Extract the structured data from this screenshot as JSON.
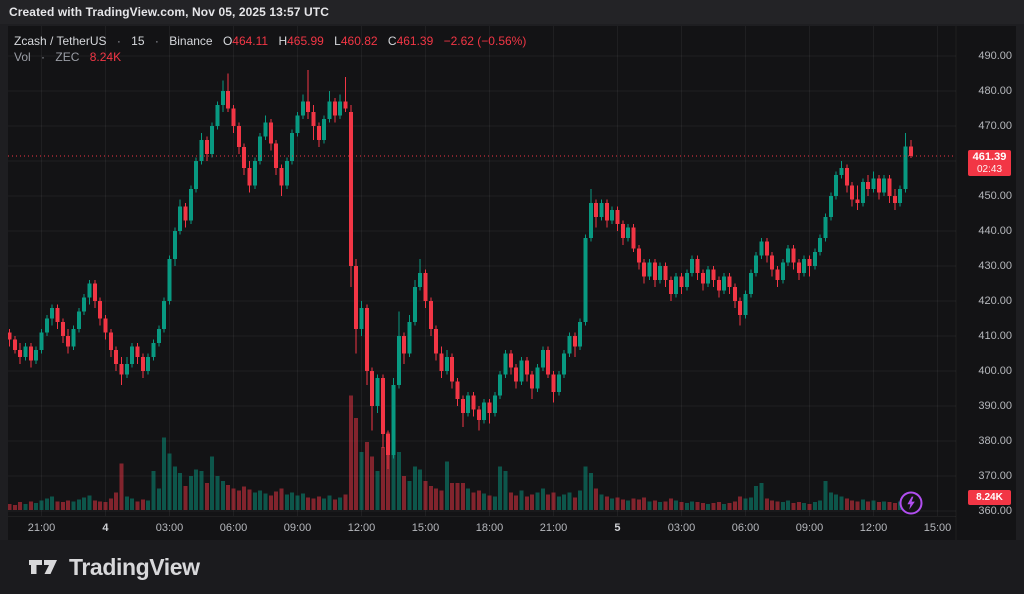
{
  "attribution": "Created with TradingView.com, Nov 05, 2025 13:57 UTC",
  "legend": {
    "title": {
      "symbol": "Zcash / TetherUS",
      "separator": "·",
      "interval": "15",
      "exchange": "Binance"
    },
    "ohlc": {
      "o_label": "O",
      "o_value": "464.11",
      "h_label": "H",
      "h_value": "465.99",
      "l_label": "L",
      "l_value": "460.82",
      "c_label": "C",
      "c_value": "461.39",
      "change": "−2.62 (−0.56%)"
    },
    "volume_row": {
      "label": "Vol",
      "separator": "·",
      "symbol": "ZEC",
      "value": "8.24K"
    }
  },
  "price_axis": {
    "labels": [
      "490.00",
      "480.00",
      "470.00",
      "450.00",
      "440.00",
      "430.00",
      "420.00",
      "410.00",
      "400.00",
      "390.00",
      "380.00",
      "370.00",
      "360.00"
    ],
    "badge": {
      "price": "461.39",
      "countdown": "02:43"
    },
    "volume_badge": "8.24K"
  },
  "time_axis": {
    "ticks": [
      {
        "label": "21:00",
        "index": 6
      },
      {
        "label": "4",
        "index": 18,
        "bold": true
      },
      {
        "label": "03:00",
        "index": 30
      },
      {
        "label": "06:00",
        "index": 42
      },
      {
        "label": "09:00",
        "index": 54
      },
      {
        "label": "12:00",
        "index": 66
      },
      {
        "label": "15:00",
        "index": 78
      },
      {
        "label": "18:00",
        "index": 90
      },
      {
        "label": "21:00",
        "index": 102
      },
      {
        "label": "5",
        "index": 114,
        "bold": true
      },
      {
        "label": "03:00",
        "index": 126
      },
      {
        "label": "06:00",
        "index": 138
      },
      {
        "label": "09:00",
        "index": 150
      },
      {
        "label": "12:00",
        "index": 162
      },
      {
        "label": "15:00",
        "index": 174
      }
    ]
  },
  "footer": {
    "brand": "TradingView"
  },
  "colors": {
    "up": "#089981",
    "down": "#F23645",
    "accent": "#F23645",
    "grid": "rgba(255,255,255,0.055)",
    "axis_text": "#B6B8BD",
    "purple": "#B14EF0",
    "background": "#131315"
  },
  "chart_data": {
    "type": "candlestick_with_volume",
    "title": "Zcash / TetherUS · 15 · Binance",
    "symbol": "ZEC/USDT",
    "interval_minutes": 15,
    "start_time": "2025-11-03 19:30 UTC",
    "end_time": "2025-11-05 13:45 UTC",
    "last_price": 461.39,
    "countdown": "02:43",
    "last_volume_k": 8.24,
    "ylim": [
      360,
      490
    ],
    "y_tick_step": 10,
    "grid": true,
    "volume_unit": "thousand ZEC",
    "candles_format": [
      "open",
      "high",
      "low",
      "close",
      "volume_k"
    ],
    "candles": [
      [
        411,
        412,
        407,
        409,
        6
      ],
      [
        409,
        410,
        405,
        406,
        5
      ],
      [
        406,
        408,
        402,
        404,
        8
      ],
      [
        404,
        408,
        403,
        407,
        6
      ],
      [
        407,
        408,
        401,
        403,
        9
      ],
      [
        403,
        407,
        402,
        406,
        7
      ],
      [
        406,
        412,
        405,
        411,
        10
      ],
      [
        411,
        416,
        410,
        415,
        12
      ],
      [
        415,
        419,
        413,
        418,
        14
      ],
      [
        418,
        419,
        412,
        414,
        9
      ],
      [
        414,
        415,
        408,
        410,
        8
      ],
      [
        410,
        412,
        405,
        407,
        10
      ],
      [
        407,
        413,
        406,
        412,
        9
      ],
      [
        412,
        418,
        411,
        417,
        11
      ],
      [
        417,
        422,
        416,
        421,
        13
      ],
      [
        421,
        426,
        419,
        425,
        15
      ],
      [
        425,
        426,
        418,
        420,
        10
      ],
      [
        420,
        421,
        413,
        415,
        9
      ],
      [
        415,
        416,
        409,
        411,
        8
      ],
      [
        411,
        412,
        404,
        406,
        12
      ],
      [
        406,
        407,
        400,
        402,
        18
      ],
      [
        402,
        404,
        396,
        399,
        48
      ],
      [
        399,
        404,
        398,
        402,
        14
      ],
      [
        402,
        408,
        401,
        407,
        12
      ],
      [
        407,
        408,
        402,
        404,
        9
      ],
      [
        404,
        405,
        398,
        400,
        11
      ],
      [
        400,
        405,
        399,
        404,
        10
      ],
      [
        404,
        409,
        403,
        408,
        40
      ],
      [
        408,
        413,
        407,
        412,
        22
      ],
      [
        412,
        421,
        411,
        420,
        75
      ],
      [
        420,
        433,
        419,
        432,
        58
      ],
      [
        432,
        441,
        430,
        440,
        45
      ],
      [
        440,
        449,
        439,
        447,
        38
      ],
      [
        447,
        448,
        441,
        443,
        25
      ],
      [
        443,
        453,
        442,
        452,
        35
      ],
      [
        452,
        461,
        451,
        460,
        42
      ],
      [
        460,
        468,
        459,
        466,
        40
      ],
      [
        466,
        467,
        460,
        462,
        28
      ],
      [
        462,
        471,
        461,
        470,
        55
      ],
      [
        470,
        477,
        469,
        476,
        35
      ],
      [
        476,
        483,
        474,
        480,
        30
      ],
      [
        480,
        485,
        474,
        475,
        26
      ],
      [
        475,
        476,
        468,
        470,
        22
      ],
      [
        470,
        471,
        462,
        464,
        20
      ],
      [
        464,
        465,
        456,
        458,
        24
      ],
      [
        458,
        460,
        451,
        453,
        21
      ],
      [
        453,
        461,
        452,
        460,
        18
      ],
      [
        460,
        468,
        459,
        467,
        20
      ],
      [
        467,
        473,
        466,
        471,
        17
      ],
      [
        471,
        472,
        463,
        465,
        15
      ],
      [
        465,
        466,
        456,
        458,
        19
      ],
      [
        458,
        459,
        450,
        453,
        22
      ],
      [
        453,
        461,
        452,
        460,
        16
      ],
      [
        460,
        469,
        459,
        468,
        18
      ],
      [
        468,
        474,
        467,
        473,
        15
      ],
      [
        473,
        479,
        472,
        477,
        17
      ],
      [
        477,
        486,
        472,
        474,
        13
      ],
      [
        474,
        476,
        466,
        470,
        12
      ],
      [
        470,
        471,
        464,
        466,
        14
      ],
      [
        466,
        473,
        465,
        472,
        12
      ],
      [
        472,
        480,
        471,
        477,
        15
      ],
      [
        477,
        478,
        471,
        473,
        11
      ],
      [
        473,
        479,
        472,
        477,
        13
      ],
      [
        477,
        484,
        474,
        475,
        16
      ],
      [
        474,
        476,
        424,
        430,
        118
      ],
      [
        430,
        432,
        405,
        412,
        95
      ],
      [
        412,
        420,
        410,
        418,
        60
      ],
      [
        418,
        419,
        396,
        400,
        70
      ],
      [
        400,
        401,
        383,
        390,
        55
      ],
      [
        390,
        399,
        388,
        398,
        40
      ],
      [
        398,
        399,
        378,
        382,
        65
      ],
      [
        382,
        383,
        372,
        376,
        80
      ],
      [
        376,
        398,
        375,
        396,
        92
      ],
      [
        396,
        417,
        395,
        410,
        60
      ],
      [
        410,
        411,
        402,
        405,
        35
      ],
      [
        405,
        416,
        404,
        414,
        30
      ],
      [
        414,
        426,
        413,
        424,
        45
      ],
      [
        424,
        432,
        423,
        428,
        42
      ],
      [
        428,
        429,
        418,
        420,
        30
      ],
      [
        420,
        421,
        410,
        412,
        25
      ],
      [
        412,
        413,
        403,
        405,
        22
      ],
      [
        405,
        407,
        398,
        400,
        20
      ],
      [
        400,
        406,
        399,
        404,
        50
      ],
      [
        404,
        405,
        395,
        397,
        28
      ],
      [
        397,
        398,
        390,
        392,
        28
      ],
      [
        392,
        393,
        384,
        388,
        28
      ],
      [
        388,
        394,
        387,
        393,
        22
      ],
      [
        393,
        394,
        387,
        389,
        18
      ],
      [
        389,
        390,
        383,
        386,
        20
      ],
      [
        386,
        392,
        385,
        391,
        17
      ],
      [
        391,
        392,
        385,
        388,
        15
      ],
      [
        388,
        394,
        387,
        393,
        14
      ],
      [
        393,
        400,
        392,
        399,
        45
      ],
      [
        399,
        406,
        398,
        405,
        40
      ],
      [
        405,
        406,
        399,
        401,
        18
      ],
      [
        401,
        402,
        395,
        397,
        15
      ],
      [
        397,
        404,
        396,
        403,
        20
      ],
      [
        403,
        404,
        397,
        399,
        14
      ],
      [
        399,
        400,
        392,
        395,
        16
      ],
      [
        395,
        402,
        394,
        401,
        18
      ],
      [
        401,
        407,
        400,
        406,
        22
      ],
      [
        406,
        407,
        398,
        399,
        16
      ],
      [
        399,
        400,
        391,
        394,
        18
      ],
      [
        394,
        400,
        393,
        399,
        14
      ],
      [
        399,
        406,
        398,
        405,
        16
      ],
      [
        405,
        411,
        404,
        410,
        18
      ],
      [
        410,
        411,
        404,
        407,
        13
      ],
      [
        407,
        415,
        406,
        414,
        20
      ],
      [
        414,
        439,
        413,
        438,
        45
      ],
      [
        438,
        452,
        437,
        448,
        38
      ],
      [
        448,
        449,
        441,
        444,
        22
      ],
      [
        444,
        449,
        443,
        448,
        16
      ],
      [
        448,
        449,
        441,
        443,
        14
      ],
      [
        443,
        447,
        442,
        446,
        12
      ],
      [
        446,
        447,
        440,
        442,
        13
      ],
      [
        442,
        443,
        436,
        438,
        11
      ],
      [
        438,
        442,
        437,
        441,
        10
      ],
      [
        441,
        442,
        434,
        435,
        12
      ],
      [
        435,
        436,
        429,
        431,
        11
      ],
      [
        431,
        432,
        425,
        427,
        13
      ],
      [
        427,
        432,
        426,
        431,
        9
      ],
      [
        431,
        432,
        424,
        426,
        10
      ],
      [
        426,
        431,
        425,
        430,
        8
      ],
      [
        430,
        431,
        424,
        426,
        9
      ],
      [
        426,
        427,
        420,
        422,
        12
      ],
      [
        422,
        428,
        421,
        427,
        10
      ],
      [
        427,
        428,
        422,
        424,
        8
      ],
      [
        424,
        429,
        423,
        428,
        7
      ],
      [
        428,
        433,
        427,
        432,
        9
      ],
      [
        432,
        433,
        426,
        428,
        8
      ],
      [
        428,
        429,
        423,
        425,
        7
      ],
      [
        425,
        430,
        424,
        429,
        6
      ],
      [
        429,
        430,
        424,
        426,
        7
      ],
      [
        426,
        427,
        421,
        423,
        8
      ],
      [
        423,
        428,
        422,
        427,
        6
      ],
      [
        427,
        428,
        422,
        424,
        7
      ],
      [
        424,
        425,
        418,
        420,
        9
      ],
      [
        420,
        421,
        413,
        416,
        14
      ],
      [
        416,
        423,
        415,
        422,
        12
      ],
      [
        422,
        429,
        421,
        428,
        13
      ],
      [
        428,
        434,
        427,
        433,
        25
      ],
      [
        433,
        438,
        432,
        437,
        28
      ],
      [
        437,
        438,
        431,
        433,
        12
      ],
      [
        433,
        434,
        427,
        429,
        10
      ],
      [
        429,
        430,
        424,
        426,
        9
      ],
      [
        426,
        432,
        425,
        431,
        8
      ],
      [
        431,
        436,
        430,
        435,
        10
      ],
      [
        435,
        436,
        429,
        431,
        7
      ],
      [
        431,
        432,
        426,
        428,
        8
      ],
      [
        428,
        433,
        427,
        432,
        7
      ],
      [
        432,
        433,
        427,
        430,
        6
      ],
      [
        430,
        435,
        429,
        434,
        8
      ],
      [
        434,
        439,
        433,
        438,
        10
      ],
      [
        438,
        445,
        437,
        444,
        30
      ],
      [
        444,
        451,
        443,
        450,
        18
      ],
      [
        450,
        457,
        449,
        456,
        16
      ],
      [
        456,
        460,
        455,
        458,
        14
      ],
      [
        458,
        459,
        451,
        453,
        12
      ],
      [
        453,
        454,
        447,
        449,
        10
      ],
      [
        449,
        453,
        446,
        448,
        9
      ],
      [
        448,
        455,
        447,
        454,
        11
      ],
      [
        454,
        456,
        450,
        452,
        9
      ],
      [
        452,
        457,
        451,
        455,
        10
      ],
      [
        455,
        456,
        449,
        451,
        8
      ],
      [
        451,
        456,
        450,
        455,
        9
      ],
      [
        455,
        456,
        448,
        450,
        8
      ],
      [
        450,
        452,
        446,
        448,
        7
      ],
      [
        448,
        453,
        447,
        452,
        9
      ],
      [
        452,
        468,
        451,
        464.11,
        15
      ],
      [
        464.11,
        465.99,
        460.82,
        461.39,
        8.24
      ]
    ]
  }
}
